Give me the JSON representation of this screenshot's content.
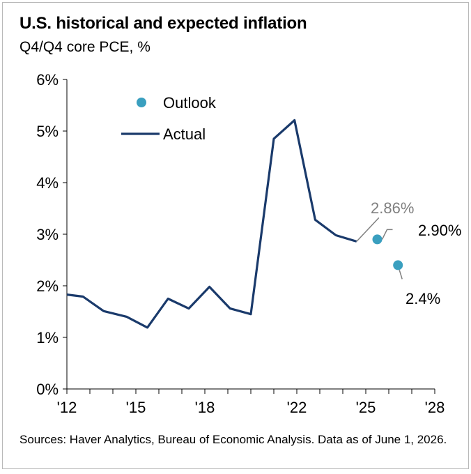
{
  "title": "U.S. historical and expected inflation",
  "subtitle": "Q4/Q4 core PCE, %",
  "footnote": "Sources: Haver Analytics, Bureau of Economic Analysis. Data as of June 1, 2026.",
  "colors": {
    "actual": "#1a3a6b",
    "outlook": "#3a9fbf",
    "annotation_gray": "#7f7f7f",
    "annotation_dark": "#000000"
  },
  "chart_data": {
    "type": "line",
    "xlim": [
      2012,
      2028
    ],
    "ylim": [
      0,
      6
    ],
    "x_ticks": [
      {
        "value": 2012,
        "label": "'12"
      },
      {
        "value": 2015,
        "label": "'15"
      },
      {
        "value": 2018,
        "label": "'18"
      },
      {
        "value": 2022,
        "label": "'22"
      },
      {
        "value": 2025,
        "label": "'25"
      },
      {
        "value": 2028,
        "label": "'28"
      }
    ],
    "y_ticks": [
      {
        "value": 0,
        "label": "0%"
      },
      {
        "value": 1,
        "label": "1%"
      },
      {
        "value": 2,
        "label": "2%"
      },
      {
        "value": 3,
        "label": "3%"
      },
      {
        "value": 4,
        "label": "4%"
      },
      {
        "value": 5,
        "label": "5%"
      },
      {
        "value": 6,
        "label": "6%"
      }
    ],
    "legend": [
      {
        "label": "Outlook",
        "kind": "dot"
      },
      {
        "label": "Actual",
        "kind": "line"
      }
    ],
    "series": [
      {
        "name": "Actual",
        "kind": "line",
        "points": [
          {
            "x": 2012.0,
            "y": 1.83
          },
          {
            "x": 2012.7,
            "y": 1.79
          },
          {
            "x": 2013.6,
            "y": 1.51
          },
          {
            "x": 2014.6,
            "y": 1.4
          },
          {
            "x": 2015.5,
            "y": 1.19
          },
          {
            "x": 2016.4,
            "y": 1.75
          },
          {
            "x": 2017.3,
            "y": 1.56
          },
          {
            "x": 2018.2,
            "y": 1.98
          },
          {
            "x": 2019.1,
            "y": 1.56
          },
          {
            "x": 2020.0,
            "y": 1.45
          },
          {
            "x": 2021.0,
            "y": 4.85
          },
          {
            "x": 2021.9,
            "y": 5.21
          },
          {
            "x": 2022.8,
            "y": 3.28
          },
          {
            "x": 2023.7,
            "y": 2.98
          },
          {
            "x": 2024.6,
            "y": 2.86
          }
        ]
      },
      {
        "name": "Outlook",
        "kind": "dot",
        "points": [
          {
            "x": 2025.5,
            "y": 2.9
          },
          {
            "x": 2026.4,
            "y": 2.4
          }
        ]
      }
    ],
    "annotations": [
      {
        "text": "2.86%",
        "color": "gray"
      },
      {
        "text": "2.90%",
        "color": "dark"
      },
      {
        "text": "2.4%",
        "color": "dark"
      }
    ]
  }
}
